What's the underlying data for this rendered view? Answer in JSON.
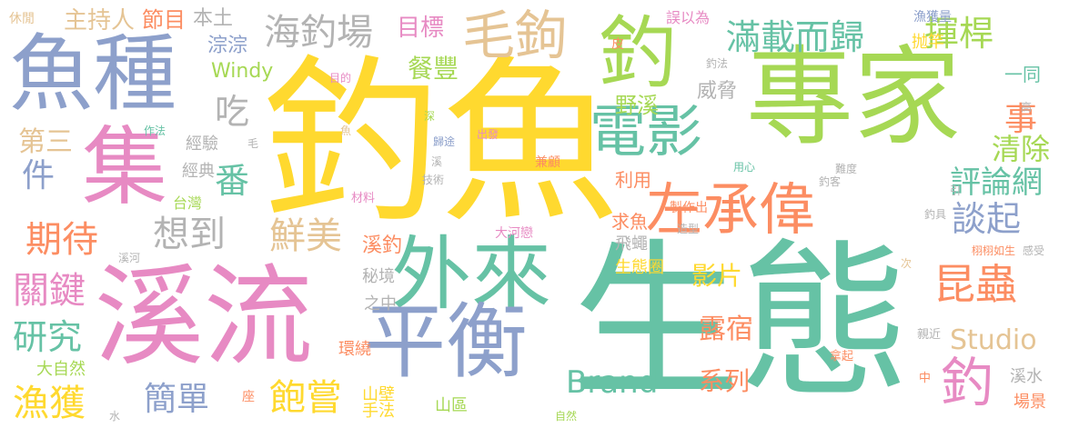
{
  "word_cloud": {
    "words": [
      {
        "text": "生態",
        "color": "#66c2a5"
      },
      {
        "text": "釣魚",
        "color": "#ffd92f"
      },
      {
        "text": "專家",
        "color": "#a6d854"
      },
      {
        "text": "溪流",
        "color": "#e78ac3"
      },
      {
        "text": "外來",
        "color": "#66c2a5"
      },
      {
        "text": "平衡",
        "color": "#8da0cb"
      },
      {
        "text": "魚種",
        "color": "#8da0cb"
      },
      {
        "text": "集",
        "color": "#e78ac3"
      },
      {
        "text": "左承偉",
        "color": "#fc8d62"
      },
      {
        "text": "電影",
        "color": "#66c2a5"
      },
      {
        "text": "釣",
        "color": "#a6d854"
      },
      {
        "text": "毛鉤",
        "color": "#e5c494"
      },
      {
        "text": "海釣場",
        "color": "#b3b3b3"
      },
      {
        "text": "滿載而歸",
        "color": "#66c2a5"
      },
      {
        "text": "揮桿",
        "color": "#a6d854"
      },
      {
        "text": "昆蟲",
        "color": "#fc8d62"
      },
      {
        "text": "釣",
        "color": "#e78ac3"
      },
      {
        "text": "期待",
        "color": "#fc8d62"
      },
      {
        "text": "想到",
        "color": "#b3b3b3"
      },
      {
        "text": "鮮美",
        "color": "#e5c494"
      },
      {
        "text": "飽嘗",
        "color": "#ffd92f"
      },
      {
        "text": "簡單",
        "color": "#8da0cb"
      },
      {
        "text": "漁獲",
        "color": "#ffd92f"
      },
      {
        "text": "研究",
        "color": "#66c2a5"
      },
      {
        "text": "關鍵",
        "color": "#e78ac3"
      },
      {
        "text": "件",
        "color": "#8da0cb"
      },
      {
        "text": "第三",
        "color": "#e5c494"
      },
      {
        "text": "番",
        "color": "#66c2a5"
      },
      {
        "text": "吃",
        "color": "#b3b3b3"
      },
      {
        "text": "談起",
        "color": "#8da0cb"
      },
      {
        "text": "評論網",
        "color": "#66c2a5"
      },
      {
        "text": "清除",
        "color": "#a6d854"
      },
      {
        "text": "事",
        "color": "#fc8d62"
      },
      {
        "text": "餐豐",
        "color": "#a6d854"
      },
      {
        "text": "目標",
        "color": "#e78ac3"
      },
      {
        "text": "主持人",
        "color": "#e5c494"
      },
      {
        "text": "節目",
        "color": "#fc8d62"
      },
      {
        "text": "本土",
        "color": "#b3b3b3"
      },
      {
        "text": "休閒",
        "color": "#e5c494"
      },
      {
        "text": "淙淙",
        "color": "#8da0cb"
      },
      {
        "text": "Windy",
        "color": "#a6d854"
      },
      {
        "text": "影片",
        "color": "#ffd92f"
      },
      {
        "text": "Studio",
        "color": "#e5c494"
      },
      {
        "text": "Brand",
        "color": "#66c2a5"
      },
      {
        "text": "露宿",
        "color": "#fc8d62"
      },
      {
        "text": "系列",
        "color": "#fc8d62"
      },
      {
        "text": "野溪",
        "color": "#a6d854"
      },
      {
        "text": "威脅",
        "color": "#b3b3b3"
      },
      {
        "text": "溪釣",
        "color": "#fc8d62"
      },
      {
        "text": "秘境",
        "color": "#b3b3b3"
      },
      {
        "text": "求魚",
        "color": "#fc8d62"
      },
      {
        "text": "利用",
        "color": "#fc8d62"
      },
      {
        "text": "飛蠅",
        "color": "#b3b3b3"
      },
      {
        "text": "生態圈",
        "color": "#ffd92f"
      },
      {
        "text": "經驗",
        "color": "#b3b3b3"
      },
      {
        "text": "經典",
        "color": "#b3b3b3"
      },
      {
        "text": "之中",
        "color": "#b3b3b3"
      },
      {
        "text": "環繞",
        "color": "#fc8d62"
      },
      {
        "text": "大自然",
        "color": "#a6d854"
      },
      {
        "text": "台灣",
        "color": "#a6d854"
      },
      {
        "text": "山壁",
        "color": "#ffd92f"
      },
      {
        "text": "山區",
        "color": "#a6d854"
      },
      {
        "text": "手法",
        "color": "#ffd92f"
      },
      {
        "text": "一同",
        "color": "#66c2a5"
      },
      {
        "text": "抛竿",
        "color": "#ffd92f"
      },
      {
        "text": "誤以為",
        "color": "#e78ac3"
      },
      {
        "text": "漁獲量",
        "color": "#8da0cb"
      },
      {
        "text": "溪水",
        "color": "#b3b3b3"
      },
      {
        "text": "場景",
        "color": "#fc8d62"
      },
      {
        "text": "大河戀",
        "color": "#e78ac3"
      },
      {
        "text": "拿起",
        "color": "#fc8d62"
      },
      {
        "text": "親近",
        "color": "#b3b3b3"
      },
      {
        "text": "栩栩如生",
        "color": "#fc8d62"
      },
      {
        "text": "感受",
        "color": "#b3b3b3"
      },
      {
        "text": "釣客",
        "color": "#b3b3b3"
      },
      {
        "text": "釣具",
        "color": "#b3b3b3"
      },
      {
        "text": "釣法",
        "color": "#b3b3b3"
      },
      {
        "text": "難度",
        "color": "#b3b3b3"
      },
      {
        "text": "用心",
        "color": "#66c2a5"
      },
      {
        "text": "製作出",
        "color": "#fc8d62"
      },
      {
        "text": "造型",
        "color": "#b3b3b3"
      },
      {
        "text": "兼顧",
        "color": "#fc8d62"
      },
      {
        "text": "出發",
        "color": "#e78ac3"
      },
      {
        "text": "歸途",
        "color": "#8da0cb"
      },
      {
        "text": "深",
        "color": "#a6d854"
      },
      {
        "text": "魚",
        "color": "#e5c494"
      },
      {
        "text": "作法",
        "color": "#66c2a5"
      },
      {
        "text": "毛",
        "color": "#b3b3b3"
      },
      {
        "text": "目的",
        "color": "#e78ac3"
      },
      {
        "text": "技術",
        "color": "#b3b3b3"
      },
      {
        "text": "材料",
        "color": "#e78ac3"
      },
      {
        "text": "溪",
        "color": "#b3b3b3"
      },
      {
        "text": "皮",
        "color": "#fc8d62"
      },
      {
        "text": "座",
        "color": "#fc8d62"
      },
      {
        "text": "自然",
        "color": "#a6d854"
      },
      {
        "text": "溪河",
        "color": "#b3b3b3"
      },
      {
        "text": "水",
        "color": "#b3b3b3"
      },
      {
        "text": "中",
        "color": "#fc8d62"
      },
      {
        "text": "高",
        "color": "#b3b3b3"
      },
      {
        "text": "引",
        "color": "#b3b3b3"
      },
      {
        "text": "次",
        "color": "#e5c494"
      }
    ]
  }
}
